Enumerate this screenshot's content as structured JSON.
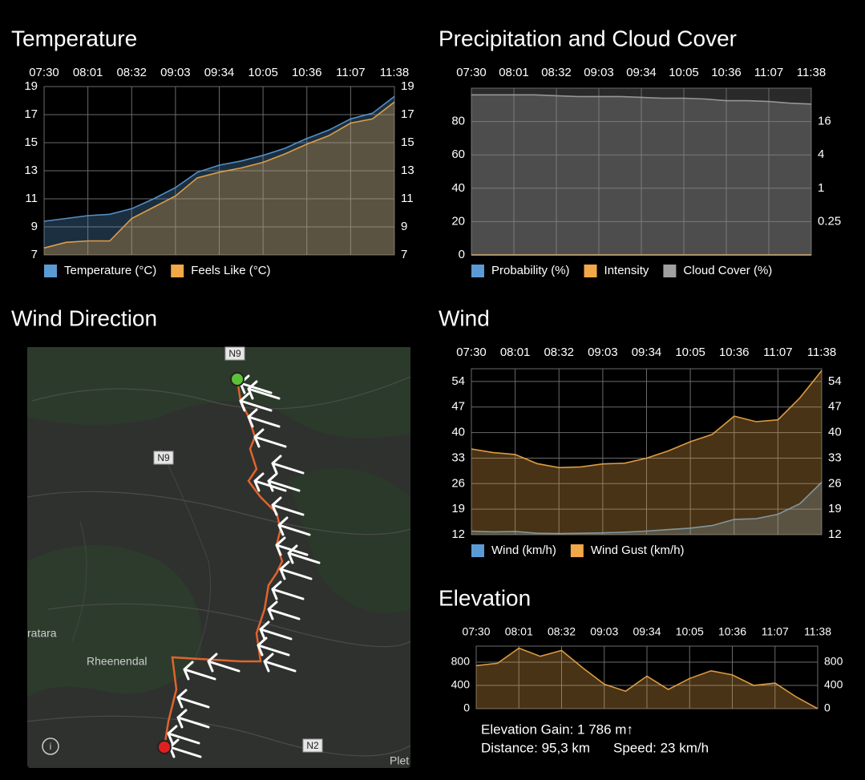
{
  "chart_data": [
    {
      "type": "area",
      "title": "Temperature",
      "categories": [
        "07:30",
        null,
        "08:01",
        null,
        "08:32",
        null,
        "09:03",
        null,
        "09:34",
        null,
        "10:05",
        null,
        "10:36",
        null,
        "11:07",
        null,
        "11:38"
      ],
      "series": [
        {
          "name": "Temperature (°C)",
          "color": "#5b9bd5",
          "values": [
            9.4,
            9.6,
            9.8,
            9.9,
            10.3,
            11.0,
            11.8,
            12.9,
            13.4,
            13.7,
            14.1,
            14.6,
            15.3,
            15.9,
            16.7,
            17.1,
            18.3
          ]
        },
        {
          "name": "Feels Like (°C)",
          "color": "#f0a848",
          "values": [
            7.5,
            7.9,
            8.0,
            8.0,
            9.6,
            10.4,
            11.2,
            12.5,
            12.9,
            13.2,
            13.6,
            14.2,
            14.9,
            15.5,
            16.4,
            16.7,
            17.9
          ]
        }
      ],
      "ylim": [
        7,
        19
      ],
      "yticks": [
        7,
        9,
        11,
        13,
        15,
        17,
        19
      ],
      "y2lim": [
        7,
        19
      ],
      "y2ticks": [
        7,
        9,
        11,
        13,
        15,
        17,
        19
      ],
      "grid": true
    },
    {
      "type": "area",
      "title": "Precipitation and Cloud Cover",
      "categories": [
        "07:30",
        null,
        "08:01",
        null,
        "08:32",
        null,
        "09:03",
        null,
        "09:34",
        null,
        "10:05",
        null,
        "10:36",
        null,
        "11:07",
        null,
        "11:38"
      ],
      "series": [
        {
          "name": "Probability (%)",
          "color": "#5b9bd5",
          "values": [
            0,
            0,
            0,
            0,
            0,
            0,
            0,
            0,
            0,
            0,
            0,
            0,
            0,
            0,
            0,
            0,
            0
          ]
        },
        {
          "name": "Intensity",
          "color": "#f0a848",
          "axis": "y2",
          "values": [
            0,
            0,
            0,
            0,
            0,
            0,
            0,
            0,
            0,
            0,
            0,
            0,
            0,
            0,
            0,
            0,
            0
          ]
        },
        {
          "name": "Cloud Cover (%)",
          "color": "#a0a0a0",
          "values": [
            96,
            96,
            96,
            96,
            95.5,
            95,
            95,
            95,
            94.5,
            94,
            94,
            93.5,
            92.5,
            92.5,
            92,
            91,
            90.5
          ]
        }
      ],
      "ylim": [
        0,
        100
      ],
      "yticks": [
        0,
        20,
        40,
        60,
        80
      ],
      "y2lim": [
        0.0625,
        64
      ],
      "y2ticks": [
        0.25,
        1,
        4,
        16
      ],
      "y2log": true,
      "grid": true
    },
    {
      "type": "area",
      "title": "Wind",
      "categories": [
        "07:30",
        null,
        "08:01",
        null,
        "08:32",
        null,
        "09:03",
        null,
        "09:34",
        null,
        "10:05",
        null,
        "10:36",
        null,
        "11:07",
        null,
        "11:38"
      ],
      "series": [
        {
          "name": "Wind (km/h)",
          "color": "#5b9bd5",
          "values": [
            13.0,
            12.8,
            12.9,
            12.4,
            12.3,
            12.4,
            12.5,
            12.7,
            13.0,
            13.4,
            13.8,
            14.5,
            16.2,
            16.4,
            17.6,
            20.5,
            26.4
          ]
        },
        {
          "name": "Wind Gust (km/h)",
          "color": "#f0a848",
          "values": [
            35.5,
            34.5,
            34.0,
            31.5,
            30.4,
            30.6,
            31.4,
            31.6,
            33.0,
            35.0,
            37.5,
            39.5,
            44.5,
            43.0,
            43.5,
            49.5,
            57.0
          ]
        }
      ],
      "ylim": [
        12,
        57.5
      ],
      "yticks": [
        12,
        19,
        26,
        33,
        40,
        47,
        54
      ],
      "y2lim": [
        12,
        57.5
      ],
      "y2ticks": [
        12,
        19,
        26,
        33,
        40,
        47,
        54
      ],
      "grid": true
    },
    {
      "type": "area",
      "title": "Elevation",
      "categories": [
        "07:30",
        null,
        "08:01",
        null,
        "08:32",
        null,
        "09:03",
        null,
        "09:34",
        null,
        "10:05",
        null,
        "10:36",
        null,
        "11:07",
        null,
        "11:38"
      ],
      "series": [
        {
          "color": "#f0a848",
          "values": [
            740,
            780,
            1040,
            900,
            1000,
            700,
            420,
            300,
            560,
            330,
            520,
            650,
            580,
            400,
            440,
            200,
            0
          ]
        }
      ],
      "ylim": [
        0,
        1075
      ],
      "yticks": [
        0,
        400,
        800
      ],
      "y2lim": [
        0,
        1075
      ],
      "y2ticks": [
        0,
        400,
        800
      ],
      "grid": true
    }
  ],
  "map": {
    "title": "Wind Direction",
    "labels": [
      "N9",
      "N9",
      "N2",
      "Rheenendal",
      "ratara",
      "Plet"
    ]
  },
  "elevation_stats": {
    "gain": "Elevation Gain: 1 786 m↑",
    "distance": "Distance: 95,3 km",
    "speed": "Speed: 23 km/h"
  }
}
